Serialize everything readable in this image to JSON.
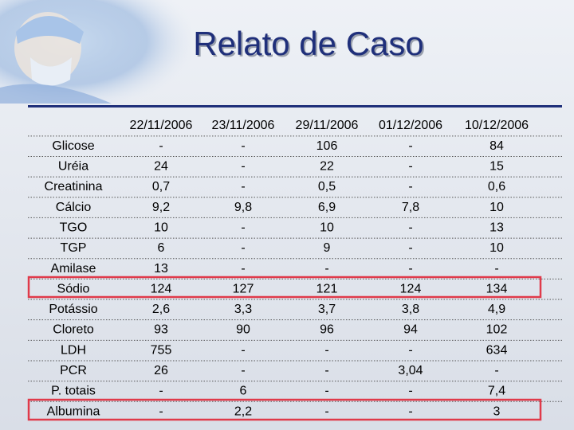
{
  "title": "Relato de Caso",
  "table": {
    "header": [
      "22/11/2006",
      "23/11/2006",
      "29/11/2006",
      "01/12/2006",
      "10/12/2006"
    ],
    "rows": [
      [
        "Glicose",
        "-",
        "-",
        "106",
        "-",
        "84"
      ],
      [
        "Uréia",
        "24",
        "-",
        "22",
        "-",
        "15"
      ],
      [
        "Creatinina",
        "0,7",
        "-",
        "0,5",
        "-",
        "0,6"
      ],
      [
        "Cálcio",
        "9,2",
        "9,8",
        "6,9",
        "7,8",
        "10"
      ],
      [
        "TGO",
        "10",
        "-",
        "10",
        "-",
        "13"
      ],
      [
        "TGP",
        "6",
        "-",
        "9",
        "-",
        "10"
      ],
      [
        "Amilase",
        "13",
        "-",
        "-",
        "-",
        "-"
      ],
      [
        "Sódio",
        "124",
        "127",
        "121",
        "124",
        "134"
      ],
      [
        "Potássio",
        "2,6",
        "3,3",
        "3,7",
        "3,8",
        "4,9"
      ],
      [
        "Cloreto",
        "93",
        "90",
        "96",
        "94",
        "102"
      ],
      [
        "LDH",
        "755",
        "-",
        "-",
        "-",
        "634"
      ],
      [
        "PCR",
        "26",
        "-",
        "-",
        "3,04",
        "-"
      ],
      [
        "P. totais",
        "-",
        "6",
        "-",
        "-",
        "7,4"
      ],
      [
        "Albumina",
        "-",
        "2,2",
        "-",
        "-",
        "3"
      ]
    ]
  }
}
